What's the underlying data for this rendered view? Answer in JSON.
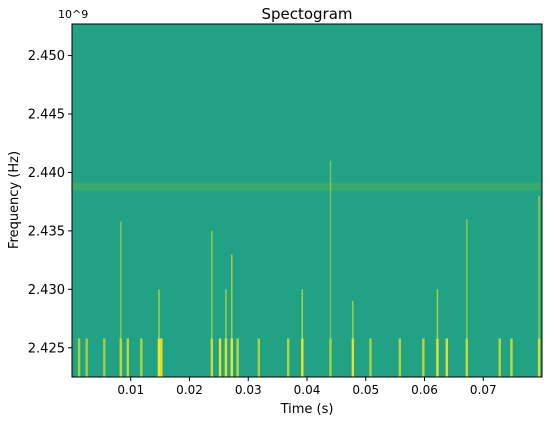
{
  "chart_data": {
    "type": "heatmap",
    "title": "Spectogram",
    "xlabel": "Time (s)",
    "ylabel": "Frequency (Hz)",
    "y_offset_label": "10^9",
    "xlim": [
      0.0,
      0.08
    ],
    "ylim": [
      2.4225,
      2.4527
    ],
    "x_ticks": [
      0.01,
      0.02,
      0.03,
      0.04,
      0.05,
      0.06,
      0.07
    ],
    "x_tick_labels": [
      "0.01",
      "0.02",
      "0.03",
      "0.04",
      "0.05",
      "0.06",
      "0.07"
    ],
    "y_ticks": [
      2.425,
      2.43,
      2.435,
      2.44,
      2.445,
      2.45
    ],
    "y_tick_labels": [
      "2.425",
      "2.430",
      "2.435",
      "2.440",
      "2.445",
      "2.450"
    ],
    "colormap": "viridis",
    "background_color": "#21a284",
    "horizontal_band": {
      "frequency": 2.4388,
      "color": "#4cb060"
    },
    "bursts": [
      {
        "time": 0.0012,
        "level": 0.6,
        "low": true
      },
      {
        "time": 0.0025,
        "level": 0.55,
        "low": true
      },
      {
        "time": 0.0055,
        "level": 0.55,
        "low": true
      },
      {
        "time": 0.0083,
        "level": 0.75,
        "high": 2.4358
      },
      {
        "time": 0.0095,
        "level": 0.7,
        "low": true
      },
      {
        "time": 0.0118,
        "level": 0.65,
        "low": true
      },
      {
        "time": 0.0148,
        "level": 1.0,
        "high": 2.43
      },
      {
        "time": 0.0152,
        "level": 0.95,
        "low": true
      },
      {
        "time": 0.0238,
        "level": 0.8,
        "high": 2.435
      },
      {
        "time": 0.0252,
        "level": 0.95,
        "low": true
      },
      {
        "time": 0.0262,
        "level": 0.9,
        "high": 2.43
      },
      {
        "time": 0.0272,
        "level": 1.0,
        "high": 2.433
      },
      {
        "time": 0.0282,
        "level": 0.7,
        "low": true
      },
      {
        "time": 0.0318,
        "level": 0.6,
        "low": true
      },
      {
        "time": 0.0368,
        "level": 0.65,
        "low": true
      },
      {
        "time": 0.0392,
        "level": 1.0,
        "high": 2.43
      },
      {
        "time": 0.044,
        "level": 0.6,
        "high": 2.441
      },
      {
        "time": 0.0478,
        "level": 0.95,
        "high": 2.429
      },
      {
        "time": 0.0508,
        "level": 0.6,
        "low": true
      },
      {
        "time": 0.0558,
        "level": 0.65,
        "low": true
      },
      {
        "time": 0.0598,
        "level": 0.7,
        "low": true
      },
      {
        "time": 0.0622,
        "level": 0.95,
        "high": 2.43
      },
      {
        "time": 0.0638,
        "level": 0.9,
        "low": true
      },
      {
        "time": 0.0672,
        "level": 0.75,
        "high": 2.436
      },
      {
        "time": 0.0728,
        "level": 0.7,
        "low": true
      },
      {
        "time": 0.0748,
        "level": 0.75,
        "low": true
      },
      {
        "time": 0.0795,
        "level": 0.85,
        "high": 2.438
      }
    ]
  }
}
